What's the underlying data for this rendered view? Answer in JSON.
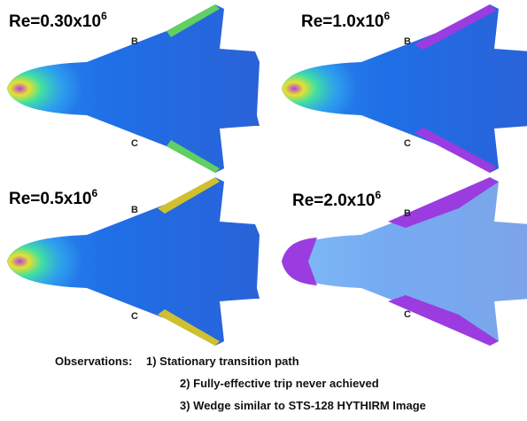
{
  "panels": [
    {
      "label": {
        "text": "Re=0.30x10",
        "exponent": "6"
      },
      "top": "B",
      "bottom": "C"
    },
    {
      "label": {
        "text": "Re=1.0x10",
        "exponent": "6"
      },
      "top": "B",
      "bottom": "C"
    },
    {
      "label": {
        "text": "Re=0.5x10",
        "exponent": "6"
      },
      "top": "B",
      "bottom": "C"
    },
    {
      "label": {
        "text": "Re=2.0x10",
        "exponent": "6"
      },
      "top": "B",
      "bottom": "C"
    }
  ],
  "observations": {
    "heading": "Observations:",
    "items": [
      "1) Stationary transition path",
      "2) Fully-effective trip never achieved",
      "3) Wedge similar to STS-128 HYTHIRM Image"
    ]
  }
}
